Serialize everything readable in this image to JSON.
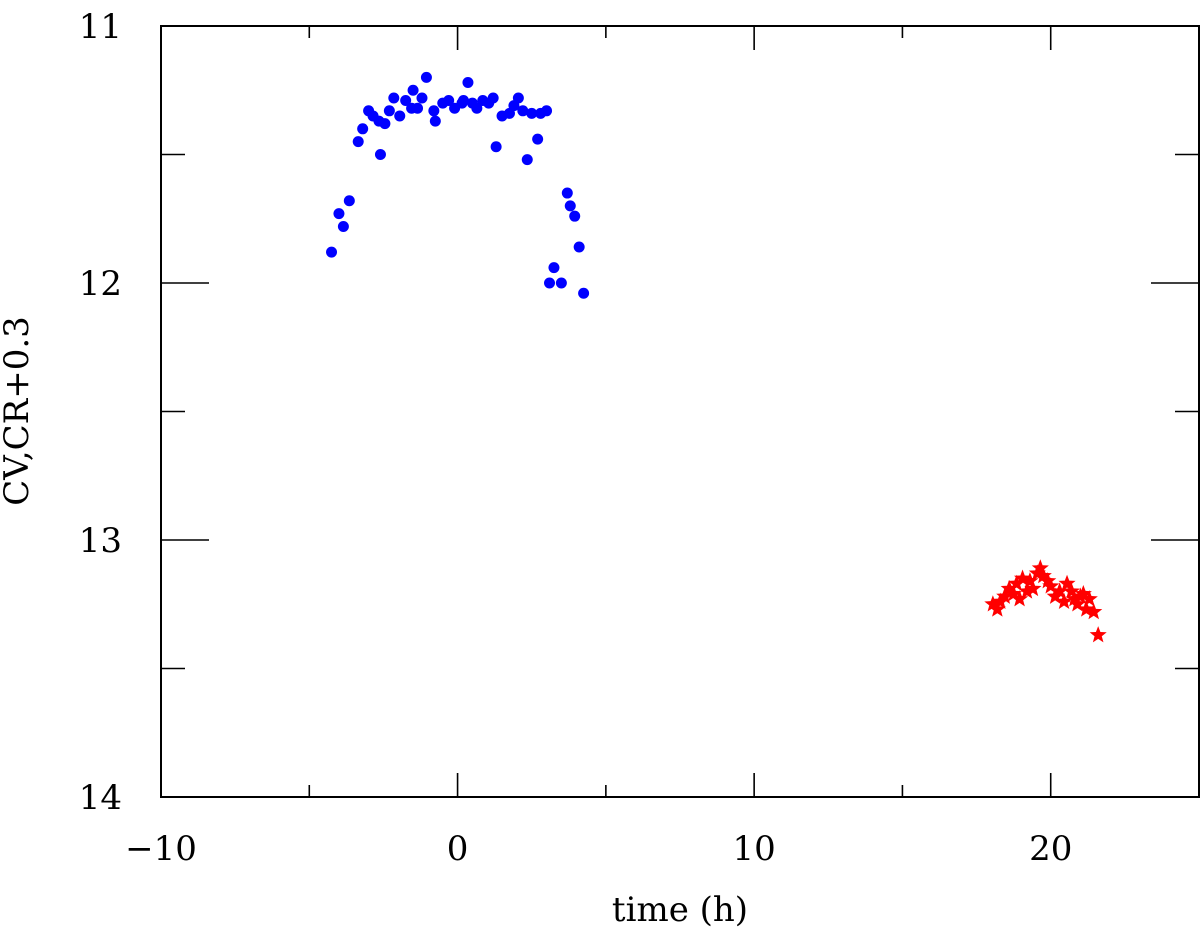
{
  "chart_data": {
    "type": "scatter",
    "title": "",
    "xlabel": "time (h)",
    "ylabel": "CV,CR+0.3",
    "xlim": [
      -10,
      25
    ],
    "ylim": [
      11,
      14
    ],
    "y_inverted": true,
    "grid": false,
    "legend": "none",
    "x_ticks_major": [
      -10,
      0,
      10,
      20
    ],
    "x_ticks_minor": [
      -5,
      5,
      15
    ],
    "x_tick_labels": [
      "−10",
      "0",
      "10",
      "20"
    ],
    "y_ticks_major": [
      11,
      12,
      13,
      14
    ],
    "y_ticks_minor": [
      11.5,
      12.5,
      13.5
    ],
    "y_tick_labels": [
      "11",
      "12",
      "13",
      "14"
    ],
    "series": [
      {
        "color": "#0000ff",
        "marker": "circle",
        "points": [
          [
            -4.25,
            11.88
          ],
          [
            -4.0,
            11.73
          ],
          [
            -3.85,
            11.78
          ],
          [
            -3.65,
            11.68
          ],
          [
            -3.35,
            11.45
          ],
          [
            -3.2,
            11.4
          ],
          [
            -3.0,
            11.33
          ],
          [
            -2.85,
            11.35
          ],
          [
            -2.65,
            11.37
          ],
          [
            -2.6,
            11.5
          ],
          [
            -2.45,
            11.38
          ],
          [
            -2.3,
            11.33
          ],
          [
            -2.15,
            11.28
          ],
          [
            -1.95,
            11.35
          ],
          [
            -1.75,
            11.29
          ],
          [
            -1.55,
            11.32
          ],
          [
            -1.5,
            11.25
          ],
          [
            -1.35,
            11.32
          ],
          [
            -1.2,
            11.28
          ],
          [
            -1.05,
            11.2
          ],
          [
            -0.8,
            11.33
          ],
          [
            -0.75,
            11.37
          ],
          [
            -0.5,
            11.3
          ],
          [
            -0.3,
            11.29
          ],
          [
            -0.1,
            11.32
          ],
          [
            0.15,
            11.3
          ],
          [
            0.2,
            11.29
          ],
          [
            0.35,
            11.22
          ],
          [
            0.5,
            11.3
          ],
          [
            0.65,
            11.32
          ],
          [
            0.85,
            11.29
          ],
          [
            1.05,
            11.3
          ],
          [
            1.2,
            11.28
          ],
          [
            1.3,
            11.47
          ],
          [
            1.5,
            11.35
          ],
          [
            1.75,
            11.34
          ],
          [
            1.9,
            11.31
          ],
          [
            2.05,
            11.28
          ],
          [
            2.2,
            11.33
          ],
          [
            2.35,
            11.52
          ],
          [
            2.5,
            11.34
          ],
          [
            2.7,
            11.44
          ],
          [
            2.8,
            11.34
          ],
          [
            3.0,
            11.33
          ],
          [
            3.1,
            12.0
          ],
          [
            3.25,
            11.94
          ],
          [
            3.5,
            12.0
          ],
          [
            3.7,
            11.65
          ],
          [
            3.8,
            11.7
          ],
          [
            3.95,
            11.74
          ],
          [
            4.1,
            11.86
          ],
          [
            4.25,
            12.04
          ]
        ]
      },
      {
        "color": "#ff0000",
        "marker": "star",
        "points": [
          [
            18.05,
            13.25
          ],
          [
            18.2,
            13.27
          ],
          [
            18.3,
            13.24
          ],
          [
            18.45,
            13.22
          ],
          [
            18.6,
            13.19
          ],
          [
            18.75,
            13.21
          ],
          [
            18.85,
            13.17
          ],
          [
            18.95,
            13.23
          ],
          [
            19.05,
            13.15
          ],
          [
            19.2,
            13.2
          ],
          [
            19.3,
            13.16
          ],
          [
            19.4,
            13.19
          ],
          [
            19.55,
            13.13
          ],
          [
            19.65,
            13.11
          ],
          [
            19.75,
            13.14
          ],
          [
            19.9,
            13.16
          ],
          [
            20.0,
            13.18
          ],
          [
            20.15,
            13.22
          ],
          [
            20.3,
            13.2
          ],
          [
            20.45,
            13.24
          ],
          [
            20.55,
            13.17
          ],
          [
            20.7,
            13.2
          ],
          [
            20.8,
            13.23
          ],
          [
            20.9,
            13.25
          ],
          [
            21.0,
            13.22
          ],
          [
            21.1,
            13.21
          ],
          [
            21.2,
            13.27
          ],
          [
            21.3,
            13.23
          ],
          [
            21.45,
            13.28
          ],
          [
            21.6,
            13.37
          ]
        ]
      }
    ]
  }
}
